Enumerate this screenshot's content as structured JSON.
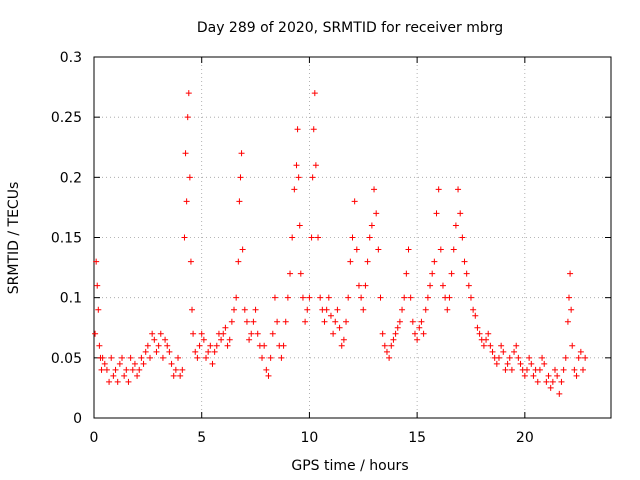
{
  "chart_data": {
    "type": "scatter",
    "title": "Day 289 of 2020, SRMTID for receiver mbrg",
    "xlabel": "GPS time / hours",
    "ylabel": "SRMTID / TECUs",
    "xlim": [
      0,
      24
    ],
    "ylim": [
      0,
      0.3
    ],
    "xticks": [
      0,
      5,
      10,
      15,
      20
    ],
    "xtick_labels": [
      "0",
      "5",
      "10",
      "15",
      "20"
    ],
    "yticks": [
      0,
      0.05,
      0.1,
      0.15,
      0.2,
      0.25,
      0.3
    ],
    "ytick_labels": [
      "0",
      "0.05",
      "0.1",
      "0.15",
      "0.2",
      "0.25",
      "0.3"
    ],
    "grid": true,
    "marker": "+",
    "marker_color": "#ff0000",
    "series": [
      {
        "name": "SRMTID",
        "points": [
          [
            0.05,
            0.07
          ],
          [
            0.1,
            0.13
          ],
          [
            0.15,
            0.11
          ],
          [
            0.2,
            0.09
          ],
          [
            0.25,
            0.06
          ],
          [
            0.3,
            0.05
          ],
          [
            0.35,
            0.04
          ],
          [
            0.4,
            0.05
          ],
          [
            0.5,
            0.045
          ],
          [
            0.6,
            0.04
          ],
          [
            0.7,
            0.03
          ],
          [
            0.8,
            0.05
          ],
          [
            0.9,
            0.035
          ],
          [
            1.0,
            0.04
          ],
          [
            1.1,
            0.03
          ],
          [
            1.2,
            0.045
          ],
          [
            1.3,
            0.05
          ],
          [
            1.4,
            0.035
          ],
          [
            1.5,
            0.04
          ],
          [
            1.6,
            0.03
          ],
          [
            1.7,
            0.05
          ],
          [
            1.8,
            0.04
          ],
          [
            1.9,
            0.045
          ],
          [
            2.0,
            0.035
          ],
          [
            2.1,
            0.04
          ],
          [
            2.2,
            0.05
          ],
          [
            2.3,
            0.045
          ],
          [
            2.4,
            0.055
          ],
          [
            2.5,
            0.06
          ],
          [
            2.6,
            0.05
          ],
          [
            2.7,
            0.07
          ],
          [
            2.8,
            0.065
          ],
          [
            2.9,
            0.055
          ],
          [
            3.0,
            0.06
          ],
          [
            3.1,
            0.07
          ],
          [
            3.2,
            0.05
          ],
          [
            3.3,
            0.065
          ],
          [
            3.4,
            0.06
          ],
          [
            3.5,
            0.055
          ],
          [
            3.6,
            0.045
          ],
          [
            3.7,
            0.035
          ],
          [
            3.8,
            0.04
          ],
          [
            3.9,
            0.05
          ],
          [
            4.0,
            0.035
          ],
          [
            4.1,
            0.04
          ],
          [
            4.2,
            0.15
          ],
          [
            4.25,
            0.22
          ],
          [
            4.3,
            0.18
          ],
          [
            4.35,
            0.25
          ],
          [
            4.4,
            0.27
          ],
          [
            4.45,
            0.2
          ],
          [
            4.5,
            0.13
          ],
          [
            4.55,
            0.09
          ],
          [
            4.6,
            0.07
          ],
          [
            4.7,
            0.055
          ],
          [
            4.8,
            0.05
          ],
          [
            4.9,
            0.06
          ],
          [
            5.0,
            0.07
          ],
          [
            5.1,
            0.065
          ],
          [
            5.2,
            0.05
          ],
          [
            5.3,
            0.055
          ],
          [
            5.4,
            0.06
          ],
          [
            5.5,
            0.045
          ],
          [
            5.6,
            0.055
          ],
          [
            5.7,
            0.06
          ],
          [
            5.8,
            0.07
          ],
          [
            5.9,
            0.065
          ],
          [
            6.0,
            0.07
          ],
          [
            6.1,
            0.075
          ],
          [
            6.2,
            0.06
          ],
          [
            6.3,
            0.065
          ],
          [
            6.4,
            0.08
          ],
          [
            6.5,
            0.09
          ],
          [
            6.6,
            0.1
          ],
          [
            6.7,
            0.13
          ],
          [
            6.75,
            0.18
          ],
          [
            6.8,
            0.2
          ],
          [
            6.85,
            0.22
          ],
          [
            6.9,
            0.14
          ],
          [
            7.0,
            0.09
          ],
          [
            7.1,
            0.08
          ],
          [
            7.2,
            0.065
          ],
          [
            7.3,
            0.07
          ],
          [
            7.4,
            0.08
          ],
          [
            7.5,
            0.09
          ],
          [
            7.6,
            0.07
          ],
          [
            7.7,
            0.06
          ],
          [
            7.8,
            0.05
          ],
          [
            7.9,
            0.06
          ],
          [
            8.0,
            0.04
          ],
          [
            8.1,
            0.035
          ],
          [
            8.2,
            0.05
          ],
          [
            8.3,
            0.07
          ],
          [
            8.4,
            0.1
          ],
          [
            8.5,
            0.08
          ],
          [
            8.6,
            0.06
          ],
          [
            8.7,
            0.05
          ],
          [
            8.8,
            0.06
          ],
          [
            8.9,
            0.08
          ],
          [
            9.0,
            0.1
          ],
          [
            9.1,
            0.12
          ],
          [
            9.2,
            0.15
          ],
          [
            9.3,
            0.19
          ],
          [
            9.4,
            0.21
          ],
          [
            9.45,
            0.24
          ],
          [
            9.5,
            0.2
          ],
          [
            9.55,
            0.16
          ],
          [
            9.6,
            0.12
          ],
          [
            9.7,
            0.1
          ],
          [
            9.8,
            0.08
          ],
          [
            9.9,
            0.09
          ],
          [
            10.0,
            0.1
          ],
          [
            10.1,
            0.15
          ],
          [
            10.15,
            0.2
          ],
          [
            10.2,
            0.24
          ],
          [
            10.25,
            0.27
          ],
          [
            10.3,
            0.21
          ],
          [
            10.4,
            0.15
          ],
          [
            10.5,
            0.1
          ],
          [
            10.6,
            0.09
          ],
          [
            10.7,
            0.08
          ],
          [
            10.8,
            0.09
          ],
          [
            10.9,
            0.1
          ],
          [
            11.0,
            0.085
          ],
          [
            11.1,
            0.07
          ],
          [
            11.2,
            0.08
          ],
          [
            11.3,
            0.09
          ],
          [
            11.4,
            0.075
          ],
          [
            11.5,
            0.06
          ],
          [
            11.6,
            0.065
          ],
          [
            11.7,
            0.08
          ],
          [
            11.8,
            0.1
          ],
          [
            11.9,
            0.13
          ],
          [
            12.0,
            0.15
          ],
          [
            12.1,
            0.18
          ],
          [
            12.2,
            0.14
          ],
          [
            12.3,
            0.11
          ],
          [
            12.4,
            0.1
          ],
          [
            12.5,
            0.09
          ],
          [
            12.6,
            0.11
          ],
          [
            12.7,
            0.13
          ],
          [
            12.8,
            0.15
          ],
          [
            12.9,
            0.16
          ],
          [
            13.0,
            0.19
          ],
          [
            13.1,
            0.17
          ],
          [
            13.2,
            0.14
          ],
          [
            13.3,
            0.1
          ],
          [
            13.4,
            0.07
          ],
          [
            13.5,
            0.06
          ],
          [
            13.6,
            0.055
          ],
          [
            13.7,
            0.05
          ],
          [
            13.8,
            0.06
          ],
          [
            13.9,
            0.065
          ],
          [
            14.0,
            0.07
          ],
          [
            14.1,
            0.075
          ],
          [
            14.2,
            0.08
          ],
          [
            14.3,
            0.09
          ],
          [
            14.4,
            0.1
          ],
          [
            14.5,
            0.12
          ],
          [
            14.6,
            0.14
          ],
          [
            14.7,
            0.1
          ],
          [
            14.8,
            0.08
          ],
          [
            14.9,
            0.07
          ],
          [
            15.0,
            0.065
          ],
          [
            15.1,
            0.075
          ],
          [
            15.2,
            0.08
          ],
          [
            15.3,
            0.07
          ],
          [
            15.4,
            0.09
          ],
          [
            15.5,
            0.1
          ],
          [
            15.6,
            0.11
          ],
          [
            15.7,
            0.12
          ],
          [
            15.8,
            0.13
          ],
          [
            15.9,
            0.17
          ],
          [
            16.0,
            0.19
          ],
          [
            16.1,
            0.14
          ],
          [
            16.2,
            0.11
          ],
          [
            16.3,
            0.1
          ],
          [
            16.4,
            0.09
          ],
          [
            16.5,
            0.1
          ],
          [
            16.6,
            0.12
          ],
          [
            16.7,
            0.14
          ],
          [
            16.8,
            0.16
          ],
          [
            16.9,
            0.19
          ],
          [
            17.0,
            0.17
          ],
          [
            17.1,
            0.15
          ],
          [
            17.2,
            0.13
          ],
          [
            17.3,
            0.12
          ],
          [
            17.4,
            0.11
          ],
          [
            17.5,
            0.1
          ],
          [
            17.6,
            0.09
          ],
          [
            17.7,
            0.085
          ],
          [
            17.8,
            0.075
          ],
          [
            17.9,
            0.07
          ],
          [
            18.0,
            0.065
          ],
          [
            18.1,
            0.06
          ],
          [
            18.2,
            0.065
          ],
          [
            18.3,
            0.07
          ],
          [
            18.4,
            0.06
          ],
          [
            18.5,
            0.055
          ],
          [
            18.6,
            0.05
          ],
          [
            18.7,
            0.045
          ],
          [
            18.8,
            0.05
          ],
          [
            18.9,
            0.06
          ],
          [
            19.0,
            0.055
          ],
          [
            19.1,
            0.04
          ],
          [
            19.2,
            0.045
          ],
          [
            19.3,
            0.05
          ],
          [
            19.4,
            0.04
          ],
          [
            19.5,
            0.055
          ],
          [
            19.6,
            0.06
          ],
          [
            19.7,
            0.05
          ],
          [
            19.8,
            0.045
          ],
          [
            19.9,
            0.04
          ],
          [
            20.0,
            0.035
          ],
          [
            20.1,
            0.04
          ],
          [
            20.2,
            0.05
          ],
          [
            20.3,
            0.045
          ],
          [
            20.4,
            0.035
          ],
          [
            20.5,
            0.04
          ],
          [
            20.6,
            0.03
          ],
          [
            20.7,
            0.04
          ],
          [
            20.8,
            0.05
          ],
          [
            20.9,
            0.045
          ],
          [
            21.0,
            0.03
          ],
          [
            21.1,
            0.035
          ],
          [
            21.2,
            0.025
          ],
          [
            21.3,
            0.03
          ],
          [
            21.4,
            0.04
          ],
          [
            21.5,
            0.035
          ],
          [
            21.6,
            0.02
          ],
          [
            21.7,
            0.03
          ],
          [
            21.8,
            0.04
          ],
          [
            21.9,
            0.05
          ],
          [
            22.0,
            0.08
          ],
          [
            22.05,
            0.1
          ],
          [
            22.1,
            0.12
          ],
          [
            22.15,
            0.09
          ],
          [
            22.2,
            0.06
          ],
          [
            22.3,
            0.04
          ],
          [
            22.4,
            0.035
          ],
          [
            22.5,
            0.05
          ],
          [
            22.6,
            0.055
          ],
          [
            22.7,
            0.04
          ],
          [
            22.8,
            0.05
          ]
        ]
      }
    ]
  }
}
